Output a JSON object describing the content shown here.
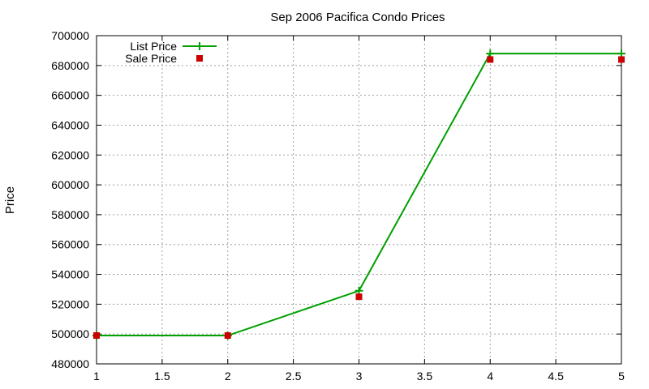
{
  "chart_data": {
    "type": "line",
    "title": "Sep 2006 Pacifica Condo Prices",
    "xlabel": "",
    "ylabel": "Price",
    "xlim": [
      1,
      5
    ],
    "ylim": [
      480000,
      700000
    ],
    "x_ticks": [
      "1",
      "1.5",
      "2",
      "2.5",
      "3",
      "3.5",
      "4",
      "4.5",
      "5"
    ],
    "y_ticks": [
      "480000",
      "500000",
      "520000",
      "540000",
      "560000",
      "580000",
      "600000",
      "620000",
      "640000",
      "660000",
      "680000",
      "700000"
    ],
    "grid": true,
    "legend_position": "top-left",
    "series": [
      {
        "name": "List Price",
        "style": "linespoints",
        "marker": "plus",
        "color": "#00a000",
        "x": [
          1,
          2,
          3,
          4,
          5
        ],
        "y": [
          499000,
          499000,
          529000,
          688000,
          688000
        ]
      },
      {
        "name": "Sale Price",
        "style": "points",
        "marker": "square",
        "color": "#cc0000",
        "x": [
          1,
          2,
          3,
          4,
          5
        ],
        "y": [
          499000,
          499000,
          525000,
          684000,
          684000
        ]
      }
    ]
  }
}
